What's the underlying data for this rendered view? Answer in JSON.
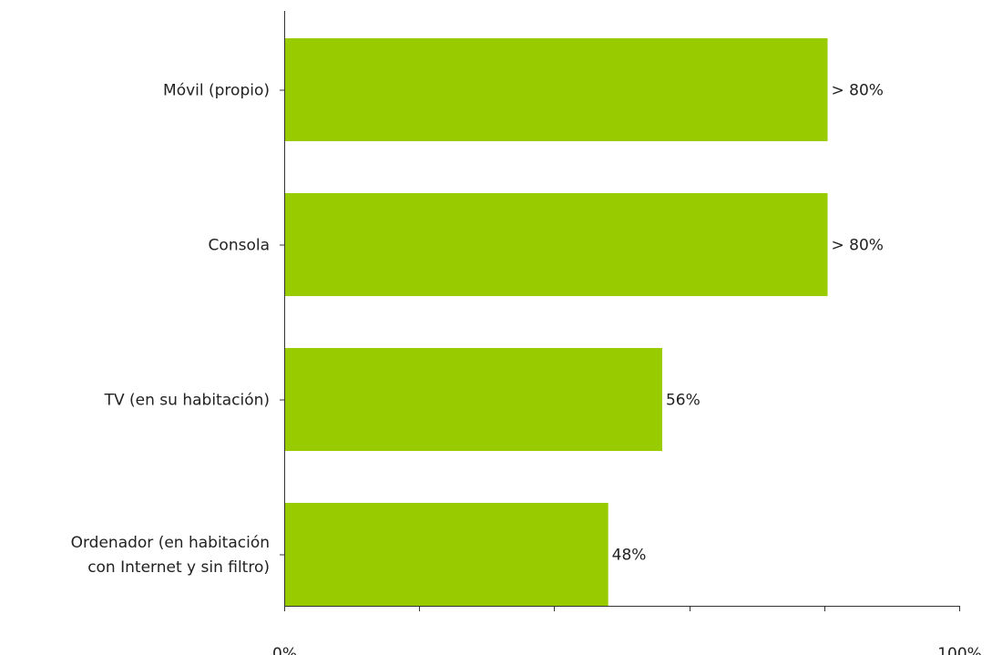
{
  "chart_data": {
    "type": "bar",
    "orientation": "horizontal",
    "title": "",
    "xlabel": "",
    "ylabel": "",
    "xlim": [
      0,
      100
    ],
    "grid": false,
    "legend": "none",
    "bar_color": "#99cc00",
    "categories": [
      [
        "Móvil (propio)"
      ],
      [
        "Consola"
      ],
      [
        "TV (en su habitación)"
      ],
      [
        "Ordenador (en habitación",
        "con Internet y sin filtro)"
      ]
    ],
    "values": [
      80.5,
      80.5,
      56,
      48
    ],
    "value_labels": [
      "> 80%",
      "> 80%",
      "56%",
      "48%"
    ],
    "x_tick_values": [
      0,
      20,
      40,
      60,
      80,
      100
    ],
    "x_tick_labels": [
      "0%",
      "",
      "",
      "",
      "",
      "100%"
    ]
  }
}
